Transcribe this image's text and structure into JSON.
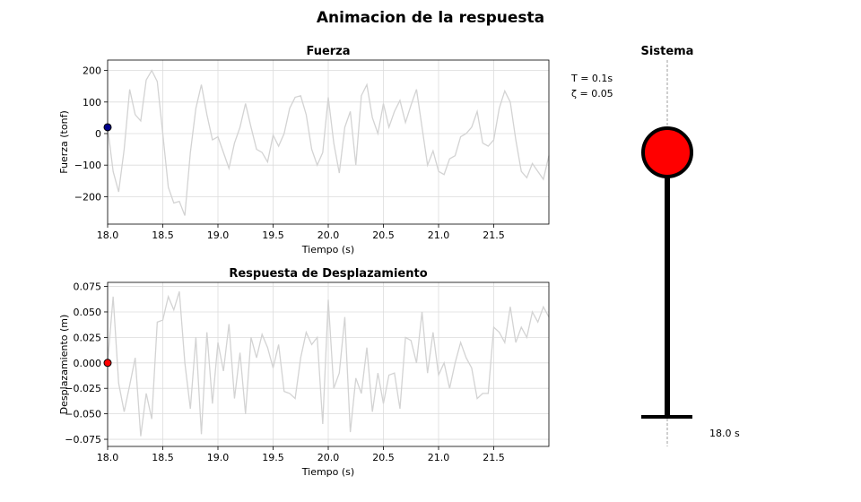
{
  "title": "Animacion de la respuesta",
  "chart_data": [
    {
      "type": "line",
      "title": "Fuerza",
      "x_label": "Tiempo (s)",
      "y_label": "Fuerza (tonf)",
      "xlim": [
        18,
        22
      ],
      "ylim": [
        -287,
        233
      ],
      "grid": true,
      "xticks": [
        {
          "value": 18,
          "label": "18.0"
        },
        18.5,
        {
          "value": 19,
          "label": "19.0"
        },
        19.5,
        {
          "value": 20,
          "label": "20.0"
        },
        20.5,
        {
          "value": 21,
          "label": "21.0"
        },
        21.5
      ],
      "yticks": [
        {
          "value": -200,
          "label": "−200"
        },
        {
          "value": -100,
          "label": "−100"
        },
        0,
        100,
        200
      ],
      "x": [
        18.0,
        18.05,
        18.1,
        18.15,
        18.2,
        18.25,
        18.3,
        18.35,
        18.4,
        18.45,
        18.5,
        18.55,
        18.6,
        18.65,
        18.7,
        18.75,
        18.8,
        18.85,
        18.9,
        18.95,
        19.0,
        19.05,
        19.1,
        19.15,
        19.2,
        19.25,
        19.3,
        19.35,
        19.4,
        19.45,
        19.5,
        19.55,
        19.6,
        19.65,
        19.7,
        19.75,
        19.8,
        19.85,
        19.9,
        19.95,
        20.0,
        20.05,
        20.1,
        20.15,
        20.2,
        20.25,
        20.3,
        20.35,
        20.4,
        20.45,
        20.5,
        20.55,
        20.6,
        20.65,
        20.7,
        20.75,
        20.8,
        20.85,
        20.9,
        20.95,
        21.0,
        21.05,
        21.1,
        21.15,
        21.2,
        21.25,
        21.3,
        21.35,
        21.4,
        21.45,
        21.5,
        21.55,
        21.6,
        21.65,
        21.7,
        21.75,
        21.8,
        21.85,
        21.9,
        21.95,
        22.0
      ],
      "series": [
        {
          "color": "#d3d3d3",
          "values": [
            20,
            -120,
            -185,
            -50,
            140,
            60,
            40,
            170,
            200,
            165,
            0,
            -170,
            -220,
            -215,
            -260,
            -60,
            80,
            155,
            60,
            -20,
            -10,
            -60,
            -110,
            -30,
            20,
            95,
            20,
            -50,
            -60,
            -90,
            -5,
            -40,
            0,
            80,
            115,
            120,
            60,
            -50,
            -100,
            -60,
            115,
            -30,
            -125,
            20,
            70,
            -100,
            120,
            155,
            50,
            0,
            95,
            20,
            70,
            105,
            35,
            90,
            140,
            20,
            -100,
            -55,
            -120,
            -130,
            -80,
            -70,
            -10,
            0,
            20,
            70,
            -30,
            -40,
            -20,
            80,
            135,
            100,
            -20,
            -120,
            -140,
            -95,
            -120,
            -145,
            -70
          ]
        }
      ],
      "marker": {
        "x": 18.0,
        "y": 20,
        "color": "#00008b"
      }
    },
    {
      "type": "line",
      "title": "Respuesta de Desplazamiento",
      "x_label": "Tiempo (s)",
      "y_label": "Desplazamiento (m)",
      "xlim": [
        18,
        22
      ],
      "ylim": [
        -0.082,
        0.079
      ],
      "grid": true,
      "xticks": [
        {
          "value": 18,
          "label": "18.0"
        },
        18.5,
        {
          "value": 19,
          "label": "19.0"
        },
        19.5,
        {
          "value": 20,
          "label": "20.0"
        },
        20.5,
        {
          "value": 21,
          "label": "21.0"
        },
        21.5
      ],
      "yticks": [
        {
          "value": -0.075,
          "label": "−0.075"
        },
        {
          "value": -0.05,
          "label": "−0.050"
        },
        {
          "value": -0.025,
          "label": "−0.025"
        },
        {
          "value": 0,
          "label": "0.000"
        },
        0.025,
        {
          "value": 0.05,
          "label": "0.050"
        },
        0.075
      ],
      "x": [
        18.0,
        18.05,
        18.1,
        18.15,
        18.2,
        18.25,
        18.3,
        18.35,
        18.4,
        18.45,
        18.5,
        18.55,
        18.6,
        18.65,
        18.7,
        18.75,
        18.8,
        18.85,
        18.9,
        18.95,
        19.0,
        19.05,
        19.1,
        19.15,
        19.2,
        19.25,
        19.3,
        19.35,
        19.4,
        19.45,
        19.5,
        19.55,
        19.6,
        19.65,
        19.7,
        19.75,
        19.8,
        19.85,
        19.9,
        19.95,
        20.0,
        20.05,
        20.1,
        20.15,
        20.2,
        20.25,
        20.3,
        20.35,
        20.4,
        20.45,
        20.5,
        20.55,
        20.6,
        20.65,
        20.7,
        20.75,
        20.8,
        20.85,
        20.9,
        20.95,
        21.0,
        21.05,
        21.1,
        21.15,
        21.2,
        21.25,
        21.3,
        21.35,
        21.4,
        21.45,
        21.5,
        21.55,
        21.6,
        21.65,
        21.7,
        21.75,
        21.8,
        21.85,
        21.9,
        21.95,
        22.0
      ],
      "series": [
        {
          "color": "#d3d3d3",
          "values": [
            0,
            0.065,
            -0.02,
            -0.048,
            -0.022,
            0.005,
            -0.072,
            -0.03,
            -0.055,
            0.04,
            0.042,
            0.065,
            0.052,
            0.07,
            0.0,
            -0.045,
            0.025,
            -0.07,
            0.03,
            -0.04,
            0.02,
            -0.008,
            0.038,
            -0.035,
            0.01,
            -0.05,
            0.025,
            0.005,
            0.028,
            0.015,
            -0.005,
            0.018,
            -0.028,
            -0.03,
            -0.035,
            0.005,
            0.03,
            0.018,
            0.025,
            -0.06,
            0.062,
            -0.025,
            -0.01,
            0.045,
            -0.068,
            -0.015,
            -0.03,
            0.015,
            -0.048,
            -0.01,
            -0.04,
            -0.012,
            -0.01,
            -0.045,
            0.025,
            0.022,
            0.0,
            0.05,
            -0.01,
            0.03,
            -0.012,
            0.0,
            -0.025,
            0.0,
            0.02,
            0.005,
            -0.005,
            -0.035,
            -0.03,
            -0.03,
            0.035,
            0.03,
            0.02,
            0.055,
            0.02,
            0.035,
            0.025,
            0.05,
            0.04,
            0.055,
            0.045
          ]
        }
      ],
      "marker": {
        "x": 18.0,
        "y": 0,
        "color": "#ff0000"
      }
    }
  ],
  "system": {
    "title": "Sistema",
    "period_label": "T = 0.1s",
    "damping_label": "ζ = 0.05",
    "time_label": "18.0 s"
  }
}
